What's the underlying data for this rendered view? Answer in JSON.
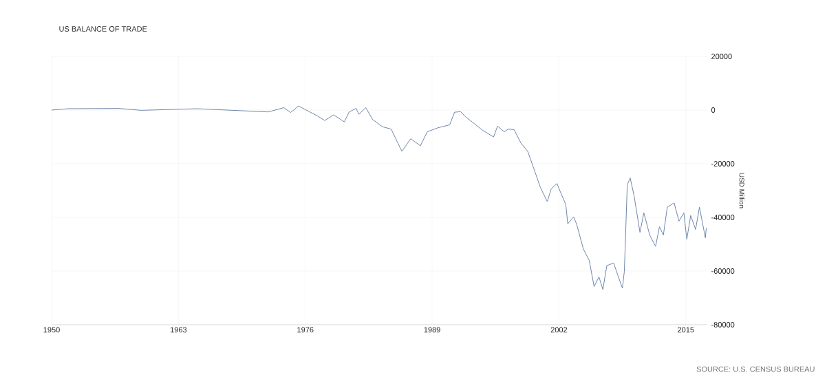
{
  "chart_data": {
    "type": "line",
    "title": "US BALANCE OF TRADE",
    "ylabel": "USD Million",
    "annotations": [
      "SOURCE: U.S. CENSUS BUREAU"
    ],
    "x": [
      1950,
      1951.7,
      1956.9,
      1959.2,
      1964.9,
      1969.2,
      1972.2,
      1973.8,
      1974.5,
      1975.3,
      1976.1,
      1977.2,
      1978.0,
      1978.9,
      1980.0,
      1980.5,
      1981.2,
      1981.5,
      1982.2,
      1982.9,
      1983.9,
      1984.8,
      1985.9,
      1986.8,
      1987.8,
      1988.5,
      1989.6,
      1990.8,
      1991.3,
      1991.9,
      1992.5,
      1993.3,
      1994.2,
      1995.3,
      1995.7,
      1996.4,
      1996.8,
      1997.4,
      1998.1,
      1998.8,
      1999.4,
      2000.1,
      2000.8,
      2001.2,
      2001.8,
      2002.2,
      2002.7,
      2002.9,
      2003.5,
      2003.8,
      2004.5,
      2005.1,
      2005.6,
      2006.1,
      2006.5,
      2006.9,
      2007.6,
      2008.0,
      2008.5,
      2008.7,
      2009.0,
      2009.3,
      2009.7,
      2010.3,
      2010.7,
      2011.3,
      2011.9,
      2012.3,
      2012.7,
      2013.1,
      2013.8,
      2014.3,
      2014.8,
      2015.1,
      2015.5,
      2016.0,
      2016.4,
      2017.0,
      2017.1
    ],
    "series": [
      {
        "color": "#6e86a8",
        "values": [
          0,
          500,
          600,
          -100,
          500,
          -200,
          -700,
          900,
          -900,
          1500,
          0,
          -2100,
          -3900,
          -1800,
          -4400,
          -700,
          600,
          -1600,
          900,
          -3500,
          -6200,
          -7100,
          -15400,
          -10700,
          -13300,
          -8100,
          -6600,
          -5500,
          -800,
          -600,
          -2700,
          -5000,
          -7600,
          -10000,
          -6000,
          -8100,
          -7100,
          -7300,
          -12300,
          -15400,
          -21600,
          -28900,
          -34100,
          -29400,
          -27400,
          -31000,
          -35200,
          -42400,
          -39800,
          -42400,
          -51800,
          -56000,
          -65800,
          -62200,
          -66900,
          -58000,
          -57000,
          -61200,
          -66400,
          -60100,
          -27900,
          -25300,
          -32000,
          -45600,
          -38300,
          -46600,
          -50800,
          -43500,
          -46600,
          -36200,
          -34600,
          -41400,
          -38300,
          -48200,
          -39300,
          -44500,
          -36200,
          -47600,
          -44000
        ]
      }
    ],
    "xlim": [
      1950,
      2017.2
    ],
    "ylim": [
      -80000,
      20000
    ],
    "xticks": [
      1950,
      1963,
      1976,
      1989,
      2002,
      2015
    ],
    "yticks": [
      -80000,
      -60000,
      -40000,
      -20000,
      0,
      20000
    ],
    "grid": true
  }
}
